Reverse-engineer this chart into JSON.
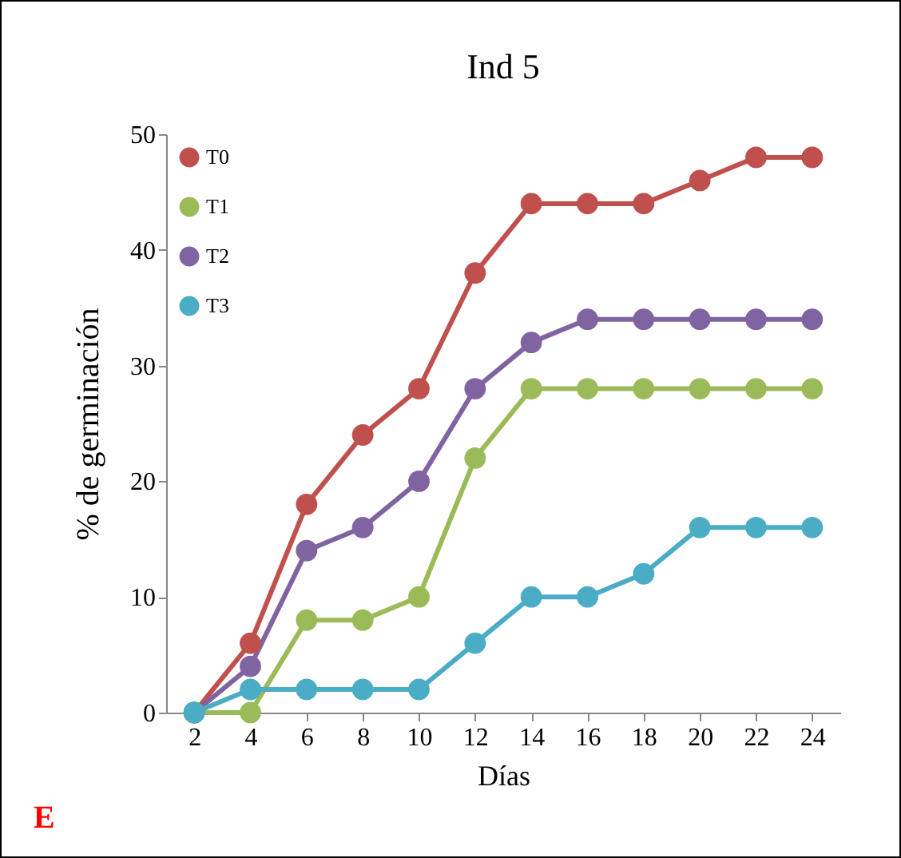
{
  "chart_data": {
    "type": "line",
    "title": "Ind 5",
    "xlabel": "Días",
    "ylabel": "% de germinación",
    "x": [
      2,
      4,
      6,
      8,
      10,
      12,
      14,
      16,
      18,
      20,
      22,
      24
    ],
    "xlim": [
      1,
      25
    ],
    "xticks": [
      2,
      4,
      6,
      8,
      10,
      12,
      14,
      16,
      18,
      20,
      22,
      24
    ],
    "ylim": [
      0,
      50
    ],
    "yticks": [
      0,
      10,
      20,
      30,
      40,
      50
    ],
    "grid": false,
    "legend": "top left",
    "marker": "circle",
    "line_style": "solid",
    "annotations": [
      "E"
    ],
    "series": [
      {
        "name": "T0",
        "color": "#c0504d",
        "values": [
          0,
          6,
          18,
          24,
          28,
          38,
          44,
          44,
          44,
          46,
          48,
          48
        ]
      },
      {
        "name": "T1",
        "color": "#9bbb59",
        "values": [
          0,
          0,
          8,
          8,
          10,
          22,
          28,
          28,
          28,
          28,
          28,
          28
        ]
      },
      {
        "name": "T2",
        "color": "#8064a2",
        "values": [
          0,
          4,
          14,
          16,
          20,
          28,
          32,
          34,
          34,
          34,
          34,
          34
        ]
      },
      {
        "name": "T3",
        "color": "#4bacc6",
        "values": [
          0,
          2,
          2,
          2,
          2,
          6,
          10,
          10,
          12,
          16,
          16,
          16
        ]
      }
    ]
  }
}
